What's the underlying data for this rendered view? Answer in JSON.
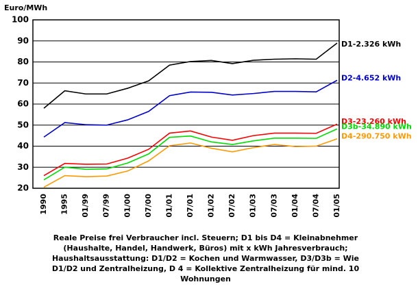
{
  "chart_data": {
    "type": "line",
    "y_label": "Euro/MWh",
    "categories": [
      "1990",
      "1995",
      "01/99",
      "07/99",
      "01/00",
      "07/00",
      "01/01",
      "07/01",
      "01/02",
      "07/02",
      "01/03",
      "07/03",
      "01/04",
      "07/04",
      "01/05"
    ],
    "series": [
      {
        "name": "D1-2.326 kWh",
        "color": "#000000",
        "values": [
          58,
          66.3,
          64.8,
          64.8,
          67.5,
          71,
          78.5,
          80.2,
          80.7,
          79.2,
          80.8,
          81.3,
          81.5,
          81.3,
          89
        ]
      },
      {
        "name": "D2-4.652 kWh",
        "color": "#0000cc",
        "values": [
          44.3,
          51.2,
          50.2,
          50,
          52.5,
          56.5,
          64,
          65.7,
          65.6,
          64.3,
          65,
          66,
          66,
          65.8,
          71.3
        ]
      },
      {
        "name": "D3-23.260 kWh",
        "color": "#ff0000",
        "values": [
          26,
          31.8,
          31.4,
          31.5,
          34.3,
          38.5,
          46.2,
          47.2,
          44.3,
          42.8,
          45,
          46.2,
          46.2,
          46.1,
          50.5
        ]
      },
      {
        "name": "D3b-34.890 kWh",
        "color": "#00dd00",
        "values": [
          24,
          30,
          29,
          29.2,
          32,
          36.3,
          44.2,
          44.8,
          42,
          40.8,
          42.5,
          43.8,
          43.8,
          43.7,
          48.2
        ]
      },
      {
        "name": "D4-290.750 kWh",
        "color": "#ff9900",
        "values": [
          20.5,
          26,
          25.5,
          25.8,
          28.2,
          33,
          40.2,
          41.5,
          39,
          37.3,
          39.3,
          40.8,
          39.8,
          40,
          43.5
        ]
      }
    ],
    "ylim": [
      20,
      100
    ],
    "yticks": [
      20,
      30,
      40,
      50,
      60,
      70,
      80,
      90,
      100
    ],
    "grid": true,
    "caption": [
      "Reale Preise frei Verbraucher incl. Steuern; D1 bis D4 = Kleinabnehmer",
      "(Haushalte, Handel, Handwerk, Büros) mit x kWh Jahresverbrauch;",
      "Haushaltsausstattung: D1/D2 = Kochen und Warmwasser, D3/D3b = Wie",
      "D1/D2 und Zentralheizung, D 4 = Kollektive Zentralheizung für mind. 10",
      "Wohnungen"
    ]
  }
}
